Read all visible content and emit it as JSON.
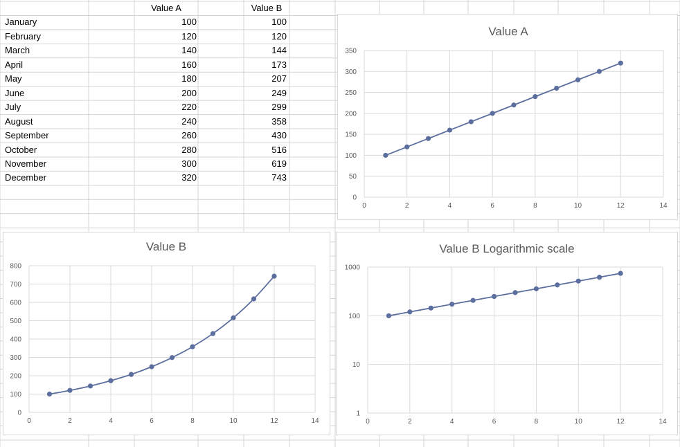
{
  "sheet": {
    "headers": [
      "Value A",
      "Value B"
    ],
    "rows": [
      {
        "month": "January",
        "a": "100",
        "b": "100"
      },
      {
        "month": "February",
        "a": "120",
        "b": "120"
      },
      {
        "month": "March",
        "a": "140",
        "b": "144"
      },
      {
        "month": "April",
        "a": "160",
        "b": "173"
      },
      {
        "month": "May",
        "a": "180",
        "b": "207"
      },
      {
        "month": "June",
        "a": "200",
        "b": "249"
      },
      {
        "month": "July",
        "a": "220",
        "b": "299"
      },
      {
        "month": "August",
        "a": "240",
        "b": "358"
      },
      {
        "month": "September",
        "a": "260",
        "b": "430"
      },
      {
        "month": "October",
        "a": "280",
        "b": "516"
      },
      {
        "month": "November",
        "a": "300",
        "b": "619"
      },
      {
        "month": "December",
        "a": "320",
        "b": "743"
      }
    ]
  },
  "colors": {
    "series": "#5b6e9e",
    "grid": "#d9d9d9",
    "cell_border": "#d4d4d4",
    "text": "#595959"
  },
  "chart_data": [
    {
      "type": "scatter",
      "title": "Value A",
      "x": [
        1,
        2,
        3,
        4,
        5,
        6,
        7,
        8,
        9,
        10,
        11,
        12
      ],
      "y": [
        100,
        120,
        140,
        160,
        180,
        200,
        220,
        240,
        260,
        280,
        300,
        320
      ],
      "xlim": [
        0,
        14
      ],
      "ylim": [
        0,
        350
      ],
      "xticks": [
        0,
        2,
        4,
        6,
        8,
        10,
        12,
        14
      ],
      "yticks": [
        0,
        50,
        100,
        150,
        200,
        250,
        300,
        350
      ],
      "y_scale": "linear",
      "lines": "straight with markers",
      "grid": true
    },
    {
      "type": "scatter",
      "title": "Value B",
      "x": [
        1,
        2,
        3,
        4,
        5,
        6,
        7,
        8,
        9,
        10,
        11,
        12
      ],
      "y": [
        100,
        120,
        144,
        173,
        207,
        249,
        299,
        358,
        430,
        516,
        619,
        743
      ],
      "xlim": [
        0,
        14
      ],
      "ylim": [
        0,
        800
      ],
      "xticks": [
        0,
        2,
        4,
        6,
        8,
        10,
        12,
        14
      ],
      "yticks": [
        0,
        100,
        200,
        300,
        400,
        500,
        600,
        700,
        800
      ],
      "y_scale": "linear",
      "lines": "smooth with markers",
      "grid": true
    },
    {
      "type": "scatter",
      "title": "Value B Logarithmic scale",
      "x": [
        1,
        2,
        3,
        4,
        5,
        6,
        7,
        8,
        9,
        10,
        11,
        12
      ],
      "y": [
        100,
        120,
        144,
        173,
        207,
        249,
        299,
        358,
        430,
        516,
        619,
        743
      ],
      "xlim": [
        0,
        14
      ],
      "ylim": [
        1,
        1000
      ],
      "xticks": [
        0,
        2,
        4,
        6,
        8,
        10,
        12,
        14
      ],
      "yticks": [
        1,
        10,
        100,
        1000
      ],
      "y_scale": "log",
      "lines": "straight with markers",
      "grid": true
    }
  ]
}
